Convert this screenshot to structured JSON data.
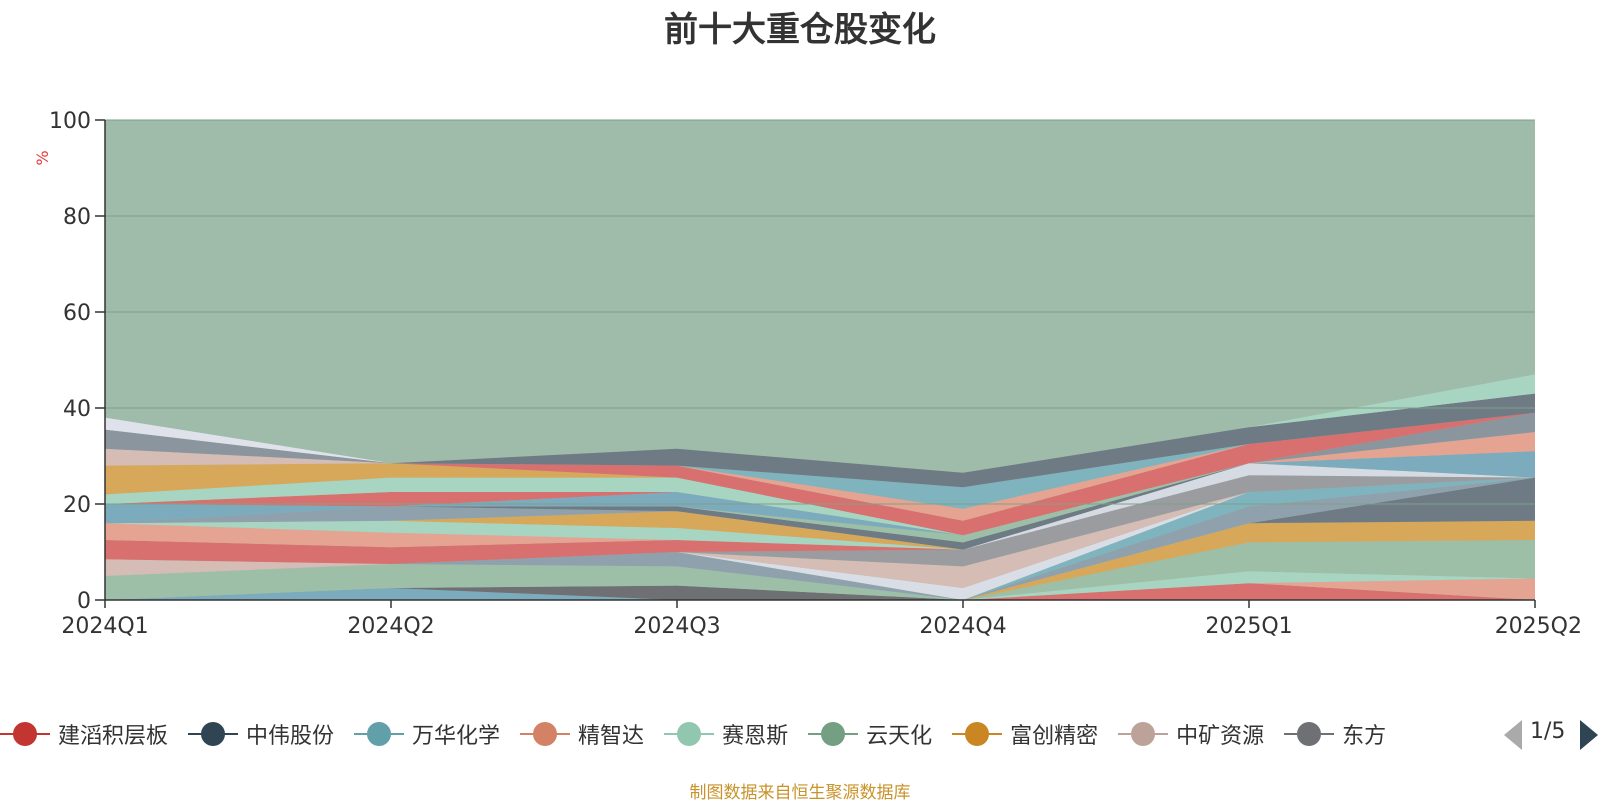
{
  "chart_data": {
    "type": "area",
    "title": "前十大重仓股变化",
    "ylabel": "%",
    "xlabel": "",
    "categories": [
      "2024Q1",
      "2024Q2",
      "2024Q3",
      "2024Q4",
      "2025Q1",
      "2025Q2"
    ],
    "ylim": [
      0,
      100
    ],
    "yticks": [
      0,
      20,
      40,
      60,
      80,
      100
    ],
    "grid": true,
    "stacked": true,
    "legend_position": "bottom",
    "background_area": {
      "value": 100,
      "color": "#9fbbaa"
    },
    "series": [
      {
        "name": "",
        "color": "#7cabbd",
        "values": [
          0,
          2.5,
          0,
          0,
          0,
          0
        ]
      },
      {
        "name": "",
        "color": "#6e7074",
        "values": [
          0,
          0,
          3,
          0,
          0,
          0
        ]
      },
      {
        "name": "",
        "color": "#d87070",
        "values": [
          0,
          0,
          0,
          0,
          3.5,
          0
        ]
      },
      {
        "name": "",
        "color": "#e4a491",
        "values": [
          0,
          0,
          0,
          0,
          0,
          4.5
        ]
      },
      {
        "name": "",
        "color": "#a8d5c1",
        "values": [
          0,
          0,
          0,
          0,
          2.5,
          0
        ]
      },
      {
        "name": "",
        "color": "#9dbfa8",
        "values": [
          5,
          5,
          4,
          0,
          6,
          8
        ]
      },
      {
        "name": "",
        "color": "#d8a85a",
        "values": [
          0,
          0,
          0,
          0,
          4,
          4
        ]
      },
      {
        "name": "",
        "color": "#6e7b85",
        "values": [
          0,
          0,
          0,
          0,
          0,
          9
        ]
      },
      {
        "name": "",
        "color": "#8fa1ad",
        "values": [
          0,
          0,
          3,
          0,
          3.5,
          0
        ]
      },
      {
        "name": "",
        "color": "#7fb3bd",
        "values": [
          0,
          0,
          0,
          0,
          3,
          0
        ]
      },
      {
        "name": "",
        "color": "#d9dde6",
        "values": [
          0,
          0,
          0,
          2.5,
          0,
          0
        ]
      },
      {
        "name": "",
        "color": "#d5bcb4",
        "values": [
          3.5,
          0,
          0,
          4.5,
          0,
          0
        ]
      },
      {
        "name": "",
        "color": "#9a9c9f",
        "values": [
          0,
          0,
          0,
          3.5,
          3.5,
          0
        ]
      },
      {
        "name": "",
        "color": "#d5dae3",
        "values": [
          0,
          0,
          0,
          0,
          2.5,
          0
        ]
      },
      {
        "name": "",
        "color": "#d87070",
        "values": [
          4,
          3.5,
          2.5,
          0,
          0,
          0
        ]
      },
      {
        "name": "",
        "color": "#e4a491",
        "values": [
          3.5,
          3,
          0,
          0,
          0,
          0
        ]
      },
      {
        "name": "",
        "color": "#a8d5c1",
        "values": [
          0,
          2.5,
          2.5,
          0,
          0,
          0
        ]
      },
      {
        "name": "",
        "color": "#d8a85a",
        "values": [
          0,
          0,
          3.5,
          0,
          0,
          0
        ]
      },
      {
        "name": "",
        "color": "#8fa1ad",
        "values": [
          0,
          3,
          0,
          0,
          0,
          0
        ]
      },
      {
        "name": "",
        "color": "#6e7b85",
        "values": [
          0,
          0,
          1,
          1.5,
          0,
          0
        ]
      },
      {
        "name": "",
        "color": "#9dbfa8",
        "values": [
          0,
          0,
          0,
          1.5,
          0,
          0
        ]
      },
      {
        "name": "",
        "color": "#7cabbd",
        "values": [
          4,
          0,
          3,
          0,
          0,
          0
        ]
      },
      {
        "name": "",
        "color": "#d87070",
        "values": [
          0,
          3,
          0,
          0,
          0,
          0
        ]
      },
      {
        "name": "",
        "color": "#a8d5c1",
        "values": [
          2,
          3,
          3,
          0,
          0,
          0
        ]
      },
      {
        "name": "",
        "color": "#d8a85a",
        "values": [
          6,
          3,
          0,
          0,
          0,
          0
        ]
      },
      {
        "name": "",
        "color": "#d5bcb4",
        "values": [
          3.5,
          0,
          0,
          0,
          0,
          0
        ]
      },
      {
        "name": "",
        "color": "#8b959e",
        "values": [
          4,
          0,
          0,
          0,
          0,
          0
        ]
      },
      {
        "name": "",
        "color": "#dfe2ea",
        "values": [
          2.5,
          0,
          0,
          0,
          0,
          0
        ]
      },
      {
        "name": "",
        "color": "#7cabbd",
        "values": [
          0,
          0,
          0,
          0,
          0,
          5.5
        ]
      },
      {
        "name": "",
        "color": "#e4a491",
        "values": [
          0,
          0,
          0,
          0,
          0,
          4
        ]
      },
      {
        "name": "",
        "color": "#8b959e",
        "values": [
          0,
          0,
          0,
          0,
          0,
          4
        ]
      },
      {
        "name": "",
        "color": "#d87070",
        "values": [
          0,
          0,
          2.5,
          3,
          4,
          0
        ]
      },
      {
        "name": "",
        "color": "#e4a491",
        "values": [
          0,
          0,
          0,
          2.5,
          0,
          0
        ]
      },
      {
        "name": "",
        "color": "#7fb3bd",
        "values": [
          0,
          0,
          0,
          4.5,
          0,
          0
        ]
      },
      {
        "name": "",
        "color": "#6e7b85",
        "values": [
          0,
          0,
          3.5,
          3,
          3.5,
          4
        ]
      },
      {
        "name": "",
        "color": "#a8d5c1",
        "values": [
          0,
          0,
          0,
          0,
          0,
          4
        ]
      }
    ],
    "legend": [
      {
        "name": "建滔积层板",
        "color": "#c23531"
      },
      {
        "name": "中伟股份",
        "color": "#2f4554"
      },
      {
        "name": "万华化学",
        "color": "#61a0a8"
      },
      {
        "name": "精智达",
        "color": "#d48265"
      },
      {
        "name": "赛恩斯",
        "color": "#91c7ae"
      },
      {
        "name": "云天化",
        "color": "#749f83"
      },
      {
        "name": "富创精密",
        "color": "#ca8622"
      },
      {
        "name": "中矿资源",
        "color": "#bda29a"
      },
      {
        "name": "东方",
        "color": "#6e7074"
      }
    ],
    "legend_page": "1/5"
  },
  "source_note": "制图数据来自恒生聚源数据库"
}
